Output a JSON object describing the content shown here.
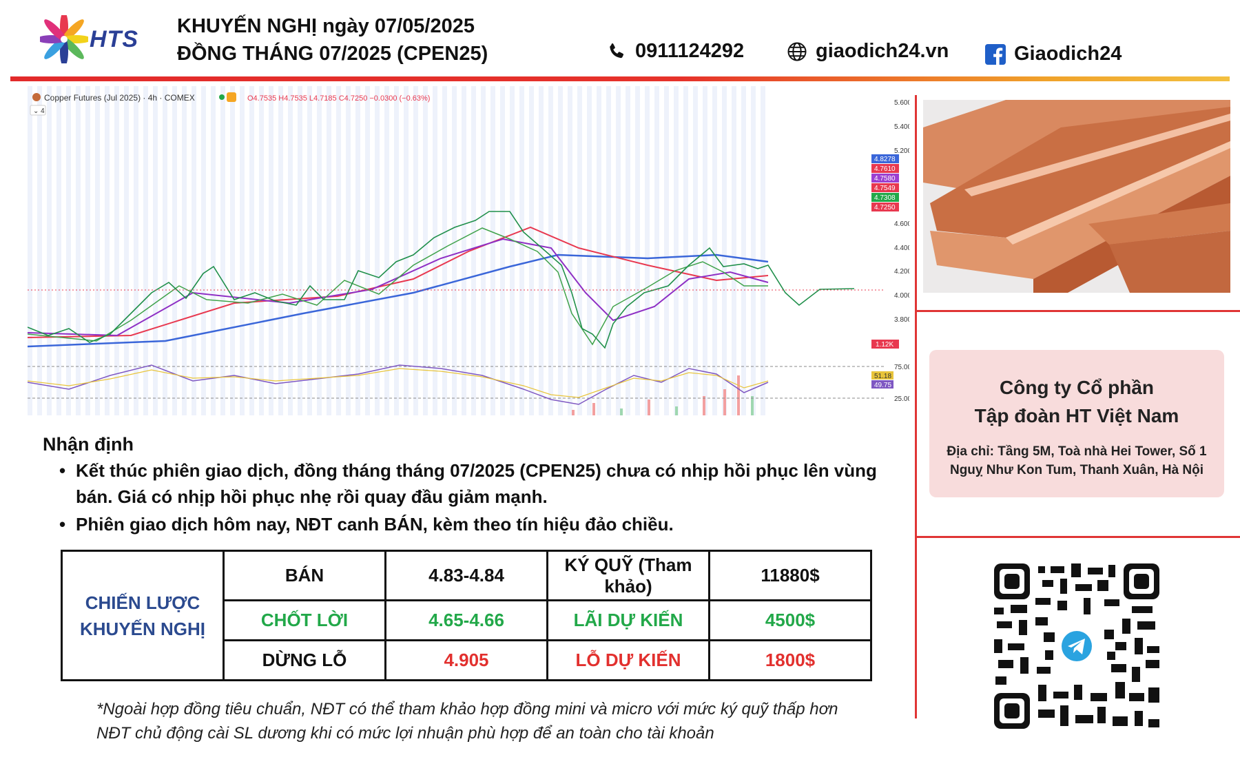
{
  "header": {
    "logo_text": "HTS",
    "title_line1": "KHUYẾN NGHỊ ngày 07/05/2025",
    "title_line2": "ĐỒNG THÁNG 07/2025 (CPEN25)",
    "phone": "0911124292",
    "website": "giaodich24.vn",
    "facebook": "Giaodich24",
    "icons": {
      "phone": "phone-icon",
      "website": "globe-icon",
      "facebook": "facebook-icon"
    },
    "colors": {
      "brand_blue": "#2a3f96",
      "accent_red": "#e22a2a"
    }
  },
  "chart": {
    "header_label": "Copper Futures (Jul 2025) · 4h · COMEX",
    "ohlc": "O4.7535 H4.7535 L4.7185 C4.7250 −0.0300 (−0.63%)",
    "indicator_count": "4",
    "price_axis": [
      "5.6000",
      "5.4000",
      "5.2000",
      "4.6000",
      "4.4000",
      "4.2000",
      "4.0000",
      "3.8000"
    ],
    "price_tags": [
      {
        "value": "4.8278",
        "color": "#3a66d9"
      },
      {
        "value": "4.7610",
        "color": "#e8384f"
      },
      {
        "value": "4.7580",
        "color": "#9b3fd1"
      },
      {
        "value": "4.7549",
        "color": "#e8384f"
      },
      {
        "value": "4.7308",
        "color": "#22a849"
      },
      {
        "value": "4.7250",
        "color": "#e8384f"
      }
    ],
    "volume_tag": "1.12K",
    "rsi_axis": [
      "75.00",
      "25.00"
    ],
    "rsi_tags": [
      {
        "value": "51.18",
        "color": "#e8c43a"
      },
      {
        "value": "49.75",
        "color": "#7e57c2"
      }
    ]
  },
  "analysis": {
    "heading": "Nhận định",
    "bullets": [
      "Kết thúc phiên giao dịch, đồng tháng tháng 07/2025 (CPEN25) chưa có nhịp hồi phục lên vùng bán. Giá có nhịp hồi phục nhẹ rồi quay đầu giảm mạnh.",
      "Phiên giao dịch hôm nay, NĐT canh BÁN, kèm theo tín hiệu đảo chiều."
    ]
  },
  "strategy": {
    "label": "CHIẾN LƯỢC KHUYẾN NGHỊ",
    "rows": [
      {
        "action": "BÁN",
        "price": "4.83-4.84",
        "metric": "KÝ QUỸ (Tham khảo)",
        "amount": "11880$"
      },
      {
        "action": "CHỐT LỜI",
        "price": "4.65-4.66",
        "metric": "LÃI DỰ KIẾN",
        "amount": "4500$"
      },
      {
        "action": "DỪNG LỖ",
        "price": "4.905",
        "metric": "LỖ DỰ KIẾN",
        "amount": "1800$"
      }
    ]
  },
  "footnote": {
    "line1": "*Ngoài hợp đồng tiêu chuẩn, NĐT có thể tham khảo hợp đồng mini và micro với mức ký quỹ thấp hơn",
    "line2": "NĐT chủ động cài SL dương khi có mức lợi nhuận phù hợp để an toàn cho tài khoản"
  },
  "company": {
    "name_line1": "Công ty Cổ phần",
    "name_line2": "Tập đoàn HT Việt Nam",
    "address_line1": "Địa chỉ: Tầng 5M, Toà nhà Hei Tower, Số 1",
    "address_line2": "Nguỵ Như Kon Tum, Thanh Xuân, Hà Nội"
  }
}
